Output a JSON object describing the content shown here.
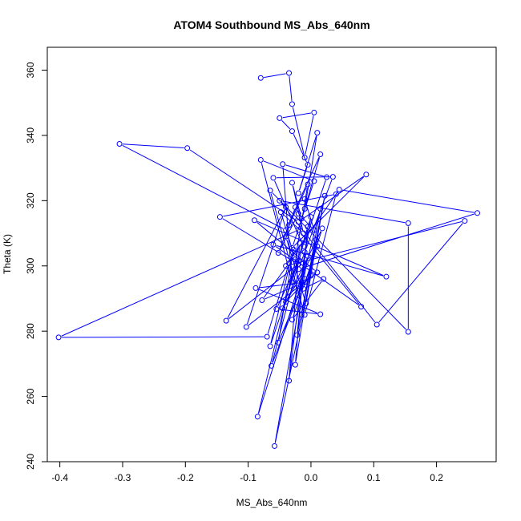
{
  "chart_data": {
    "type": "scatter",
    "title": "ATOM4 Southbound MS_Abs_640nm",
    "xlabel": "MS_Abs_640nm",
    "ylabel": "Theta (K)",
    "xlim": [
      -0.42,
      0.295
    ],
    "ylim": [
      240,
      367
    ],
    "xticks": [
      -0.4,
      -0.3,
      -0.2,
      -0.1,
      0.0,
      0.1,
      0.2
    ],
    "xtick_labels": [
      "-0.4",
      "-0.3",
      "-0.2",
      "-0.1",
      "0.0",
      "0.1",
      "0.2"
    ],
    "yticks": [
      240,
      260,
      280,
      300,
      320,
      340,
      360
    ],
    "ytick_labels": [
      "240",
      "260",
      "280",
      "300",
      "320",
      "340",
      "360"
    ],
    "connected": true,
    "marker": "open-circle",
    "series_color": "#0000ff",
    "grid": false,
    "series": [
      {
        "points": [
          [
            -0.08,
            357.6
          ],
          [
            -0.035,
            359.1
          ],
          [
            -0.03,
            349.6
          ],
          [
            -0.01,
            333.2
          ],
          [
            0.005,
            347.0
          ],
          [
            -0.05,
            345.3
          ],
          [
            -0.03,
            341.3
          ],
          [
            -0.005,
            331.0
          ],
          [
            -0.02,
            322.3
          ],
          [
            0.01,
            340.8
          ],
          [
            -0.01,
            317.5
          ],
          [
            0.015,
            334.2
          ],
          [
            -0.04,
            311.0
          ],
          [
            -0.305,
            337.4
          ],
          [
            -0.197,
            336.1
          ],
          [
            -0.02,
            313.5
          ],
          [
            0.088,
            328.0
          ],
          [
            -0.03,
            305.5
          ],
          [
            0.005,
            326.0
          ],
          [
            -0.08,
            332.5
          ],
          [
            -0.03,
            295.0
          ],
          [
            -0.045,
            331.2
          ],
          [
            0.025,
            327.2
          ],
          [
            -0.012,
            306.0
          ],
          [
            -0.06,
            327.0
          ],
          [
            0.035,
            327.3
          ],
          [
            -0.02,
            299.0
          ],
          [
            0.265,
            316.2
          ],
          [
            0.045,
            323.4
          ],
          [
            -0.04,
            300.0
          ],
          [
            0.245,
            313.8
          ],
          [
            0.105,
            282.0
          ],
          [
            -0.05,
            320.0
          ],
          [
            0.155,
            313.1
          ],
          [
            0.155,
            279.8
          ],
          [
            -0.065,
            323.1
          ],
          [
            -0.01,
            285.0
          ],
          [
            0.04,
            322.0
          ],
          [
            -0.145,
            315.0
          ],
          [
            -0.02,
            300.5
          ],
          [
            -0.135,
            283.2
          ],
          [
            -0.04,
            318.0
          ],
          [
            -0.103,
            281.3
          ],
          [
            0.01,
            298.0
          ],
          [
            -0.09,
            314.0
          ],
          [
            0.12,
            296.7
          ],
          [
            -0.06,
            306.5
          ],
          [
            0.08,
            287.5
          ],
          [
            -0.02,
            311.0
          ],
          [
            -0.402,
            278.1
          ],
          [
            -0.07,
            278.3
          ],
          [
            -0.035,
            300.8
          ],
          [
            -0.078,
            289.5
          ],
          [
            -0.01,
            295.0
          ],
          [
            -0.088,
            293.2
          ],
          [
            0.015,
            285.2
          ],
          [
            -0.055,
            286.8
          ],
          [
            -0.02,
            301.5
          ],
          [
            -0.065,
            275.4
          ],
          [
            -0.028,
            305.0
          ],
          [
            -0.052,
            276.5
          ],
          [
            -0.01,
            296.0
          ],
          [
            -0.063,
            269.4
          ],
          [
            -0.005,
            312.0
          ],
          [
            -0.022,
            278.8
          ],
          [
            0.008,
            308.0
          ],
          [
            -0.025,
            269.7
          ],
          [
            -0.01,
            304.2
          ],
          [
            -0.035,
            264.8
          ],
          [
            -0.018,
            307.0
          ],
          [
            -0.085,
            253.8
          ],
          [
            -0.005,
            303.0
          ],
          [
            -0.058,
            244.8
          ],
          [
            0.0,
            297.0
          ],
          [
            -0.04,
            289.0
          ],
          [
            0.018,
            311.5
          ],
          [
            -0.012,
            293.0
          ],
          [
            0.02,
            296.0
          ],
          [
            -0.03,
            283.5
          ],
          [
            0.01,
            306.0
          ],
          [
            -0.045,
            287.0
          ],
          [
            0.0,
            315.0
          ],
          [
            -0.02,
            291.0
          ],
          [
            0.015,
            317.5
          ],
          [
            -0.015,
            285.0
          ],
          [
            0.022,
            321.5
          ],
          [
            -0.008,
            288.5
          ],
          [
            -0.04,
            309.0
          ],
          [
            -0.025,
            318.0
          ],
          [
            -0.015,
            314.5
          ],
          [
            -0.03,
            325.5
          ],
          [
            -0.012,
            310.0
          ],
          [
            -0.048,
            316.5
          ],
          [
            -0.025,
            302.0
          ],
          [
            -0.005,
            325.0
          ],
          [
            -0.035,
            312.5
          ],
          [
            -0.052,
            304.0
          ],
          [
            -0.02,
            316.0
          ],
          [
            0.005,
            311.0
          ],
          [
            -0.01,
            320.5
          ]
        ]
      }
    ]
  }
}
